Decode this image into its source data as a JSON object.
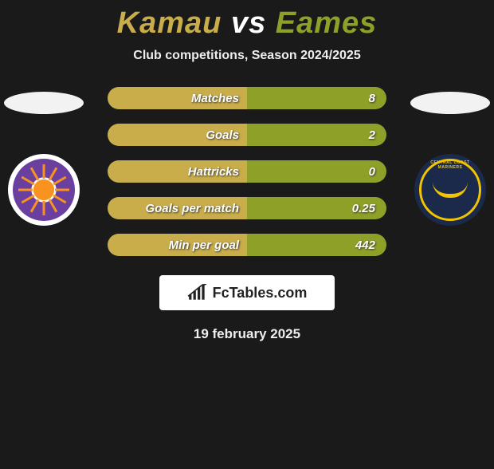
{
  "title": {
    "player1": "Kamau",
    "vs": "vs",
    "player2": "Eames"
  },
  "subtitle": "Club competitions, Season 2024/2025",
  "colors": {
    "left": "#c8ad4a",
    "right_bar": "#8fa028",
    "right_title": "#8fa028"
  },
  "left_badge": {
    "name": "Perth Glory",
    "primary": "#6b3fa0",
    "accent": "#f7931e"
  },
  "right_badge": {
    "name": "Central Coast Mariners",
    "primary": "#1b2a4a",
    "accent": "#f2c400"
  },
  "stats": [
    {
      "label": "Matches",
      "value": "8",
      "left_pct": 50,
      "label_color": "#ffffff"
    },
    {
      "label": "Goals",
      "value": "2",
      "left_pct": 50,
      "label_color": "#ffffff"
    },
    {
      "label": "Hattricks",
      "value": "0",
      "left_pct": 50,
      "label_color": "#ffffff"
    },
    {
      "label": "Goals per match",
      "value": "0.25",
      "left_pct": 50,
      "label_color": "#ffffff"
    },
    {
      "label": "Min per goal",
      "value": "442",
      "left_pct": 50,
      "label_color": "#ffffff"
    }
  ],
  "brand": {
    "text": "FcTables.com"
  },
  "date": "19 february 2025"
}
